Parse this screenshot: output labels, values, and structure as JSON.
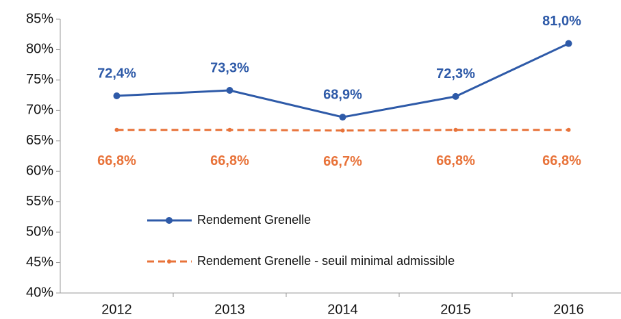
{
  "chart_data": {
    "type": "line",
    "categories": [
      "2012",
      "2013",
      "2014",
      "2015",
      "2016"
    ],
    "series": [
      {
        "name": "Rendement Grenelle",
        "color": "#2e5aa8",
        "values": [
          72.4,
          73.3,
          68.9,
          72.3,
          81.0
        ],
        "value_labels": [
          "72,4%",
          "73,3%",
          "68,9%",
          "72,3%",
          "81,0%"
        ]
      },
      {
        "name": "Rendement Grenelle - seuil minimal admissible",
        "color": "#e8733a",
        "dashed": true,
        "values": [
          66.8,
          66.8,
          66.7,
          66.8,
          66.8
        ],
        "value_labels": [
          "66,8%",
          "66,8%",
          "66,7%",
          "66,8%",
          "66,8%"
        ]
      }
    ],
    "ylim": [
      40,
      85
    ],
    "yticks": [
      {
        "value": 40,
        "label": "40%"
      },
      {
        "value": 45,
        "label": "45%"
      },
      {
        "value": 50,
        "label": "50%"
      },
      {
        "value": 55,
        "label": "55%"
      },
      {
        "value": 60,
        "label": "60%"
      },
      {
        "value": 65,
        "label": "65%"
      },
      {
        "value": 70,
        "label": "70%"
      },
      {
        "value": 75,
        "label": "75%"
      },
      {
        "value": 80,
        "label": "80%"
      },
      {
        "value": 85,
        "label": "85%"
      }
    ],
    "grid": false
  }
}
